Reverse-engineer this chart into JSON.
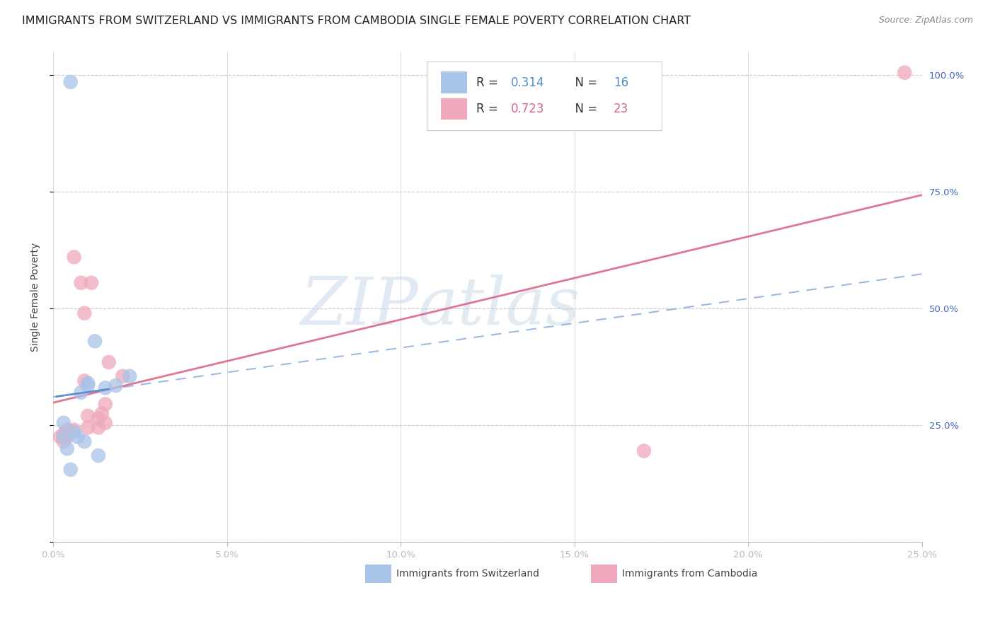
{
  "title": "IMMIGRANTS FROM SWITZERLAND VS IMMIGRANTS FROM CAMBODIA SINGLE FEMALE POVERTY CORRELATION CHART",
  "source": "Source: ZipAtlas.com",
  "ylabel": "Single Female Poverty",
  "xlim": [
    0.0,
    0.25
  ],
  "ylim": [
    0.0,
    1.05
  ],
  "background_color": "#ffffff",
  "switzerland_color": "#a8c4e8",
  "cambodia_color": "#f0a8bc",
  "swiss_line_color": "#5588cc",
  "swiss_dash_color": "#88aedd",
  "cambodia_line_color": "#dd6688",
  "swiss_R": 0.314,
  "swiss_N": 16,
  "cambodia_R": 0.723,
  "cambodia_N": 23,
  "swiss_points_x": [
    0.005,
    0.012,
    0.008,
    0.015,
    0.018,
    0.022,
    0.01,
    0.01,
    0.003,
    0.003,
    0.007,
    0.006,
    0.009,
    0.004,
    0.013,
    0.005
  ],
  "swiss_points_y": [
    0.985,
    0.43,
    0.32,
    0.33,
    0.335,
    0.355,
    0.34,
    0.335,
    0.225,
    0.255,
    0.225,
    0.235,
    0.215,
    0.2,
    0.185,
    0.155
  ],
  "cambodia_points_x": [
    0.002,
    0.003,
    0.004,
    0.006,
    0.008,
    0.009,
    0.009,
    0.011,
    0.01,
    0.013,
    0.014,
    0.015,
    0.016,
    0.015,
    0.01,
    0.02,
    0.003,
    0.004,
    0.003,
    0.013,
    0.17,
    0.245,
    0.006
  ],
  "cambodia_points_y": [
    0.225,
    0.23,
    0.24,
    0.24,
    0.555,
    0.49,
    0.345,
    0.555,
    0.27,
    0.265,
    0.275,
    0.295,
    0.385,
    0.255,
    0.245,
    0.355,
    0.225,
    0.225,
    0.215,
    0.245,
    0.195,
    1.005,
    0.61
  ],
  "watermark_zip": "ZIP",
  "watermark_atlas": "atlas",
  "title_fontsize": 11.5,
  "source_fontsize": 9,
  "axis_label_fontsize": 10,
  "tick_fontsize": 9.5,
  "legend_fontsize": 12
}
